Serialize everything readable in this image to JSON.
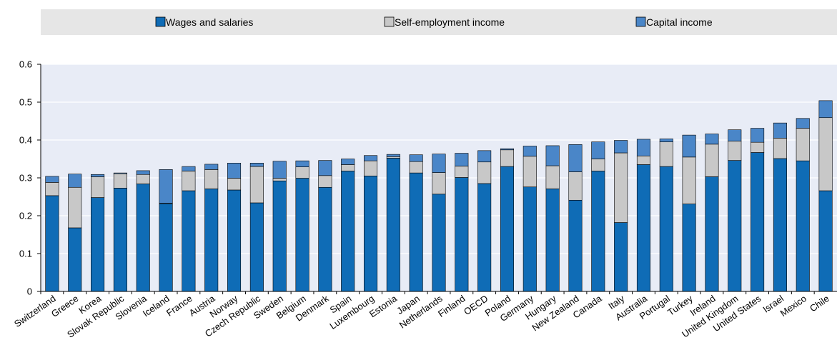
{
  "chart_data": {
    "type": "bar",
    "stacked": true,
    "legend_position": "top",
    "grid": true,
    "title": "",
    "xlabel": "",
    "ylabel": "",
    "ylim": [
      0,
      0.6
    ],
    "yticks": [
      "0",
      "0.1",
      "0.2",
      "0.3",
      "0.4",
      "0.5",
      "0.6"
    ],
    "categories": [
      "Switzerland",
      "Greece",
      "Korea",
      "Slovak Republic",
      "Slovenia",
      "Iceland",
      "France",
      "Austria",
      "Norway",
      "Czech Republic",
      "Sweden",
      "Belgium",
      "Denmark",
      "Spain",
      "Luxembourg",
      "Estonia",
      "Japan",
      "Netherlands",
      "Finland",
      "OECD",
      "Poland",
      "Germany",
      "Hungary",
      "New Zealand",
      "Canada",
      "Italy",
      "Australia",
      "Portugal",
      "Turkey",
      "Ireland",
      "United Kingdom",
      "United States",
      "Israel",
      "Mexico",
      "Chile"
    ],
    "series": [
      {
        "name": "Wages and salaries",
        "color": "#0f6cb6",
        "values": [
          0.253,
          0.168,
          0.248,
          0.273,
          0.284,
          0.232,
          0.266,
          0.271,
          0.268,
          0.234,
          0.292,
          0.299,
          0.275,
          0.318,
          0.305,
          0.352,
          0.313,
          0.257,
          0.301,
          0.285,
          0.33,
          0.276,
          0.271,
          0.241,
          0.318,
          0.182,
          0.335,
          0.33,
          0.231,
          0.303,
          0.346,
          0.367,
          0.351,
          0.345,
          0.266
        ]
      },
      {
        "name": "Self-employment income",
        "color": "#c8c8c8",
        "values": [
          0.035,
          0.107,
          0.055,
          0.038,
          0.025,
          0.001,
          0.052,
          0.051,
          0.031,
          0.096,
          0.007,
          0.03,
          0.031,
          0.017,
          0.04,
          0.004,
          0.03,
          0.057,
          0.03,
          0.057,
          0.044,
          0.081,
          0.061,
          0.075,
          0.032,
          0.184,
          0.023,
          0.065,
          0.124,
          0.086,
          0.051,
          0.027,
          0.054,
          0.086,
          0.193
        ]
      },
      {
        "name": "Capital income",
        "color": "#4a86c8",
        "values": [
          0.016,
          0.035,
          0.006,
          0.002,
          0.01,
          0.089,
          0.012,
          0.014,
          0.04,
          0.009,
          0.045,
          0.016,
          0.04,
          0.015,
          0.014,
          0.006,
          0.018,
          0.049,
          0.034,
          0.03,
          0.003,
          0.027,
          0.053,
          0.072,
          0.045,
          0.033,
          0.044,
          0.008,
          0.058,
          0.027,
          0.03,
          0.037,
          0.04,
          0.026,
          0.045
        ]
      }
    ]
  }
}
